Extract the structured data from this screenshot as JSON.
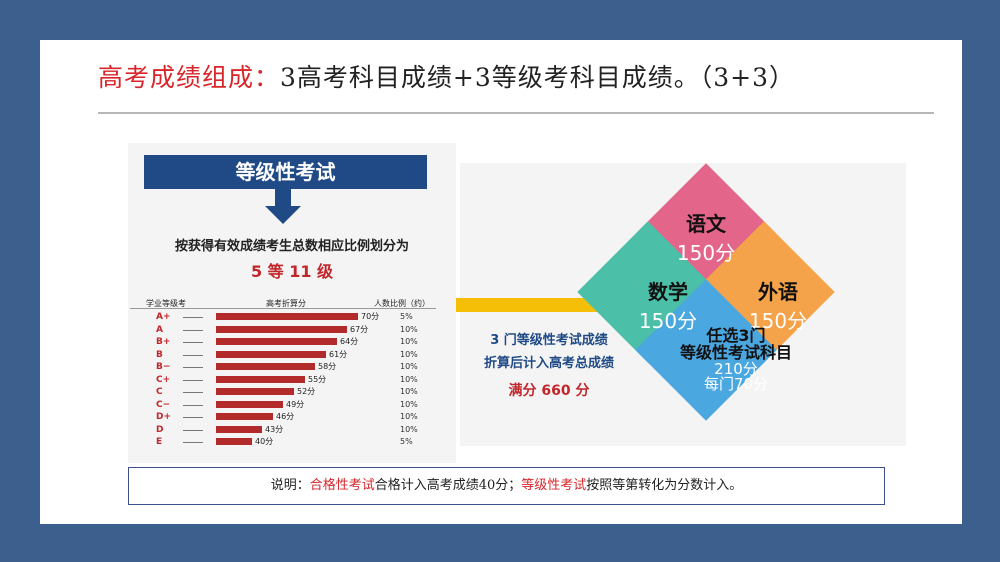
{
  "title": {
    "prefix": "高考成绩组成：",
    "rest": "3高考科目成绩+3等级考科目成绩。（3+3）"
  },
  "left": {
    "banner": "等级性考试",
    "sub1": "按获得有效成绩考生总数相应比例划分为",
    "sub2": "5 等 11 级",
    "headers": [
      "学业等级考",
      "高考折算分",
      "人数比例（约）"
    ],
    "grades": [
      {
        "grade": "A+",
        "score": "70分",
        "pct": "5%",
        "value": 70
      },
      {
        "grade": "A",
        "score": "67分",
        "pct": "10%",
        "value": 67
      },
      {
        "grade": "B+",
        "score": "64分",
        "pct": "10%",
        "value": 64
      },
      {
        "grade": "B",
        "score": "61分",
        "pct": "10%",
        "value": 61
      },
      {
        "grade": "B−",
        "score": "58分",
        "pct": "10%",
        "value": 58
      },
      {
        "grade": "C+",
        "score": "55分",
        "pct": "10%",
        "value": 55
      },
      {
        "grade": "C",
        "score": "52分",
        "pct": "10%",
        "value": 52
      },
      {
        "grade": "C−",
        "score": "49分",
        "pct": "10%",
        "value": 49
      },
      {
        "grade": "D+",
        "score": "46分",
        "pct": "10%",
        "value": 46
      },
      {
        "grade": "D",
        "score": "43分",
        "pct": "10%",
        "value": 43
      },
      {
        "grade": "E",
        "score": "40分",
        "pct": "5%",
        "value": 40
      }
    ]
  },
  "middle": {
    "line1": "3 门等级性考试成绩",
    "line2": "折算后计入高考总成绩",
    "line3": "满分 660 分"
  },
  "diamonds": {
    "yuwen": {
      "name": "语文",
      "score": "150分",
      "color": "#e4658a"
    },
    "shuxue": {
      "name": "数学",
      "score": "150分",
      "color": "#4cbfa8"
    },
    "waiyu": {
      "name": "外语",
      "score": "150分",
      "color": "#f4a34a"
    },
    "renxuan": {
      "name1": "任选3门",
      "name2": "等级性考试科目",
      "score1": "210分",
      "score2": "每门70分",
      "color": "#4aa7e0"
    }
  },
  "note": {
    "prefix": "说明：",
    "red1": "合格性考试",
    "mid": "合格计入高考成绩40分；",
    "red2": "等级性考试",
    "end": "按照等第转化为分数计入。"
  }
}
